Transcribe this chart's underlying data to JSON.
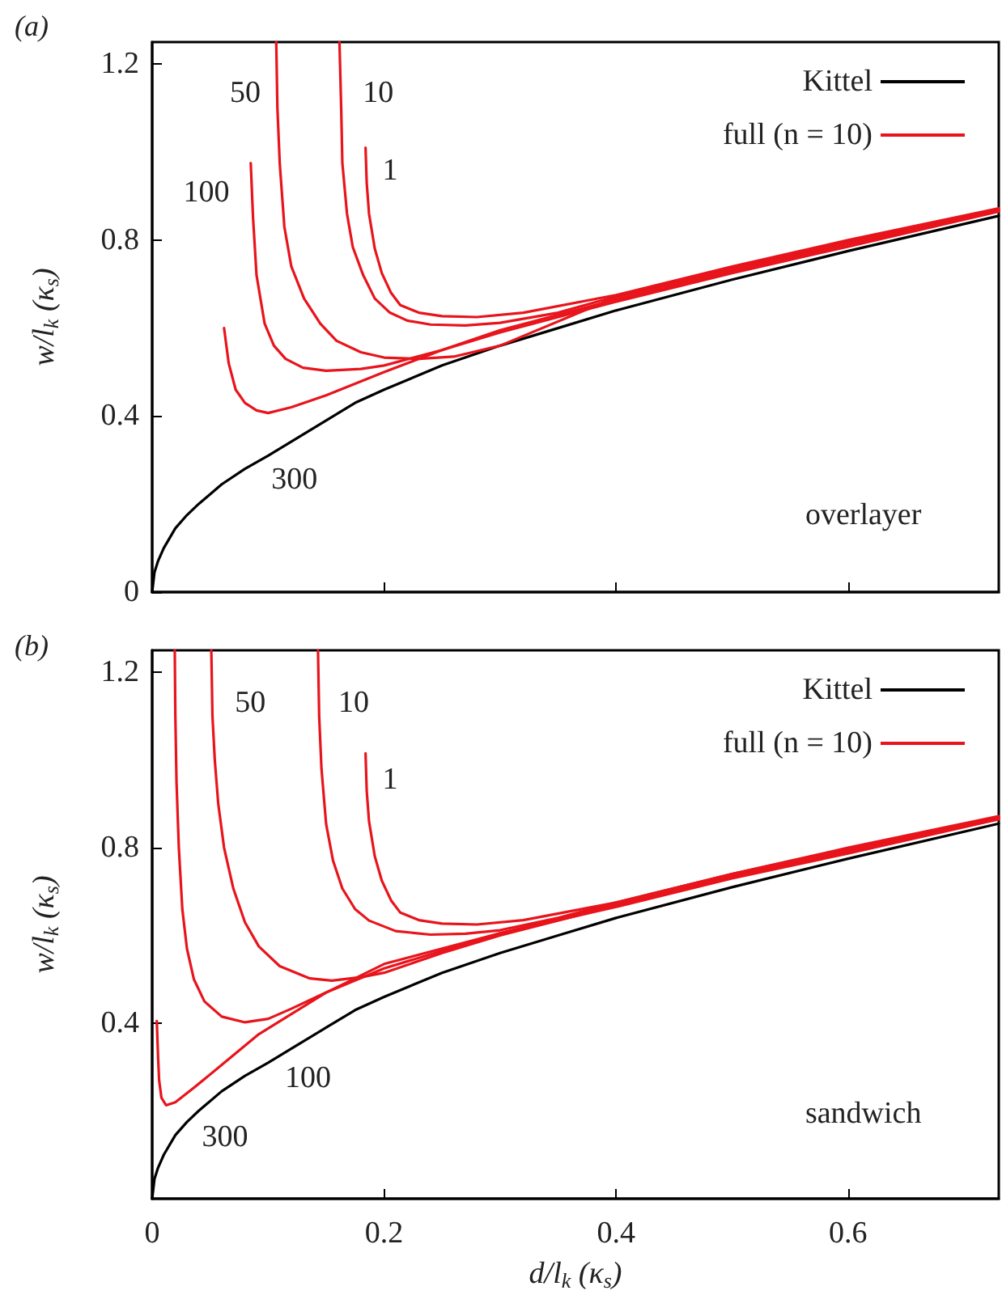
{
  "chart_data": [
    {
      "type": "line",
      "title": "(a)",
      "ylabel": "w/l$_{k}$ (κ$_{s}$)",
      "xlim": [
        0,
        0.73
      ],
      "ylim": [
        0,
        1.25
      ],
      "xticks": [
        0,
        0.2,
        0.4,
        0.6
      ],
      "yticks": [
        0,
        0.4,
        0.8,
        1.2
      ],
      "tick_labels": "y",
      "grid": false,
      "legend": "top right",
      "marker": "none",
      "line_style": "solid",
      "series": [
        {
          "name": "Kittel",
          "color": "#000000",
          "x": [
            0,
            0.002,
            0.005,
            0.01,
            0.02,
            0.03,
            0.04,
            0.06,
            0.08,
            0.1,
            0.125,
            0.15,
            0.175,
            0.2,
            0.25,
            0.3,
            0.35,
            0.4,
            0.5,
            0.6,
            0.73
          ],
          "values": [
            0,
            0.045,
            0.07,
            0.1,
            0.145,
            0.175,
            0.2,
            0.245,
            0.28,
            0.31,
            0.35,
            0.39,
            0.43,
            0.46,
            0.515,
            0.56,
            0.6,
            0.64,
            0.71,
            0.775,
            0.855
          ]
        },
        {
          "name": "full (n = 10)",
          "color": "#e8141c",
          "x": [
            0.184,
            0.185,
            0.187,
            0.192,
            0.198,
            0.206,
            0.214,
            0.23,
            0.25,
            0.28,
            0.32,
            0.4,
            0.5,
            0.6,
            0.73
          ],
          "values": [
            1.01,
            0.93,
            0.86,
            0.78,
            0.725,
            0.68,
            0.652,
            0.635,
            0.627,
            0.625,
            0.635,
            0.675,
            0.74,
            0.8,
            0.872
          ]
        },
        {
          "color": "#e8141c",
          "x": [
            0.1615,
            0.163,
            0.164,
            0.168,
            0.173,
            0.182,
            0.192,
            0.205,
            0.22,
            0.24,
            0.27,
            0.3,
            0.35,
            0.4,
            0.5,
            0.6,
            0.73
          ],
          "values": [
            1.25,
            1.1,
            0.975,
            0.86,
            0.784,
            0.72,
            0.667,
            0.635,
            0.617,
            0.608,
            0.606,
            0.612,
            0.635,
            0.672,
            0.738,
            0.797,
            0.87
          ]
        },
        {
          "color": "#e8141c",
          "x": [
            0.107,
            0.108,
            0.11,
            0.114,
            0.12,
            0.131,
            0.145,
            0.159,
            0.18,
            0.2,
            0.23,
            0.26,
            0.3,
            0.4,
            0.5,
            0.6,
            0.73
          ],
          "values": [
            1.25,
            1.1,
            0.975,
            0.83,
            0.74,
            0.667,
            0.61,
            0.571,
            0.545,
            0.533,
            0.53,
            0.535,
            0.56,
            0.67,
            0.735,
            0.795,
            0.868
          ]
        },
        {
          "color": "#e8141c",
          "x": [
            0.085,
            0.087,
            0.09,
            0.097,
            0.105,
            0.115,
            0.13,
            0.15,
            0.18,
            0.2,
            0.25,
            0.3,
            0.4,
            0.5,
            0.6,
            0.73
          ],
          "values": [
            0.975,
            0.85,
            0.72,
            0.61,
            0.56,
            0.53,
            0.51,
            0.503,
            0.507,
            0.515,
            0.55,
            0.595,
            0.665,
            0.73,
            0.79,
            0.866
          ]
        },
        {
          "color": "#e8141c",
          "x": [
            0.062,
            0.066,
            0.072,
            0.08,
            0.09,
            0.1,
            0.12,
            0.15,
            0.2,
            0.25,
            0.3,
            0.4,
            0.5,
            0.6,
            0.73
          ],
          "values": [
            0.6,
            0.52,
            0.46,
            0.43,
            0.413,
            0.407,
            0.42,
            0.447,
            0.5,
            0.55,
            0.59,
            0.66,
            0.725,
            0.785,
            0.865
          ]
        }
      ],
      "annotations": [
        "1",
        "10",
        "50",
        "100",
        "300",
        "overlayer"
      ]
    },
    {
      "type": "line",
      "title": "(b)",
      "xlabel": "d/l$_{k}$ (κ$_{s}$)",
      "ylabel": "w/l$_{k}$ (κ$_{s}$)",
      "xlim": [
        0,
        0.73
      ],
      "ylim": [
        0,
        1.25
      ],
      "xticks": [
        0,
        0.2,
        0.4,
        0.6
      ],
      "yticks": [
        0.4,
        0.8,
        1.2
      ],
      "grid": false,
      "legend": "top right",
      "marker": "none",
      "line_style": "solid",
      "series": [
        {
          "name": "Kittel",
          "color": "#000000",
          "x": [
            0,
            0.002,
            0.005,
            0.01,
            0.02,
            0.03,
            0.04,
            0.06,
            0.08,
            0.1,
            0.125,
            0.15,
            0.175,
            0.2,
            0.25,
            0.3,
            0.35,
            0.4,
            0.5,
            0.6,
            0.73
          ],
          "values": [
            0,
            0.045,
            0.07,
            0.1,
            0.145,
            0.175,
            0.2,
            0.245,
            0.28,
            0.31,
            0.35,
            0.39,
            0.43,
            0.46,
            0.515,
            0.56,
            0.6,
            0.64,
            0.71,
            0.775,
            0.855
          ]
        },
        {
          "name": "full (n = 10)",
          "color": "#e8141c",
          "x": [
            0.184,
            0.185,
            0.187,
            0.192,
            0.198,
            0.206,
            0.214,
            0.23,
            0.25,
            0.28,
            0.32,
            0.4,
            0.5,
            0.6,
            0.73
          ],
          "values": [
            1.015,
            0.93,
            0.86,
            0.78,
            0.725,
            0.68,
            0.652,
            0.635,
            0.627,
            0.625,
            0.635,
            0.675,
            0.74,
            0.8,
            0.872
          ]
        },
        {
          "color": "#e8141c",
          "x": [
            0.143,
            0.144,
            0.146,
            0.15,
            0.156,
            0.164,
            0.175,
            0.187,
            0.21,
            0.24,
            0.27,
            0.3,
            0.35,
            0.4,
            0.5,
            0.6,
            0.73
          ],
          "values": [
            1.25,
            1.1,
            0.98,
            0.854,
            0.77,
            0.707,
            0.66,
            0.634,
            0.61,
            0.602,
            0.604,
            0.612,
            0.64,
            0.675,
            0.74,
            0.798,
            0.87
          ]
        },
        {
          "color": "#e8141c",
          "x": [
            0.051,
            0.052,
            0.054,
            0.057,
            0.062,
            0.07,
            0.08,
            0.092,
            0.11,
            0.136,
            0.155,
            0.18,
            0.2,
            0.25,
            0.3,
            0.4,
            0.5,
            0.6,
            0.73
          ],
          "values": [
            1.25,
            1.1,
            1.0,
            0.9,
            0.8,
            0.707,
            0.63,
            0.575,
            0.53,
            0.502,
            0.497,
            0.505,
            0.515,
            0.56,
            0.6,
            0.668,
            0.735,
            0.793,
            0.868
          ]
        },
        {
          "color": "#e8141c",
          "x": [
            0.0195,
            0.02,
            0.021,
            0.023,
            0.026,
            0.03,
            0.036,
            0.045,
            0.06,
            0.08,
            0.1,
            0.12,
            0.15,
            0.2,
            0.3,
            0.4,
            0.5,
            0.6,
            0.73
          ],
          "values": [
            1.25,
            1.1,
            0.95,
            0.8,
            0.66,
            0.57,
            0.5,
            0.45,
            0.415,
            0.402,
            0.41,
            0.433,
            0.47,
            0.525,
            0.605,
            0.67,
            0.733,
            0.79,
            0.866
          ]
        },
        {
          "color": "#e8141c",
          "x": [
            0.004,
            0.005,
            0.006,
            0.008,
            0.012,
            0.02,
            0.036,
            0.06,
            0.092,
            0.15,
            0.2,
            0.3,
            0.4,
            0.5,
            0.6,
            0.73
          ],
          "values": [
            0.405,
            0.33,
            0.27,
            0.23,
            0.213,
            0.22,
            0.253,
            0.305,
            0.375,
            0.47,
            0.535,
            0.605,
            0.665,
            0.73,
            0.787,
            0.865
          ]
        }
      ],
      "annotations": [
        "1",
        "10",
        "50",
        "100",
        "300",
        "sandwich"
      ]
    }
  ]
}
